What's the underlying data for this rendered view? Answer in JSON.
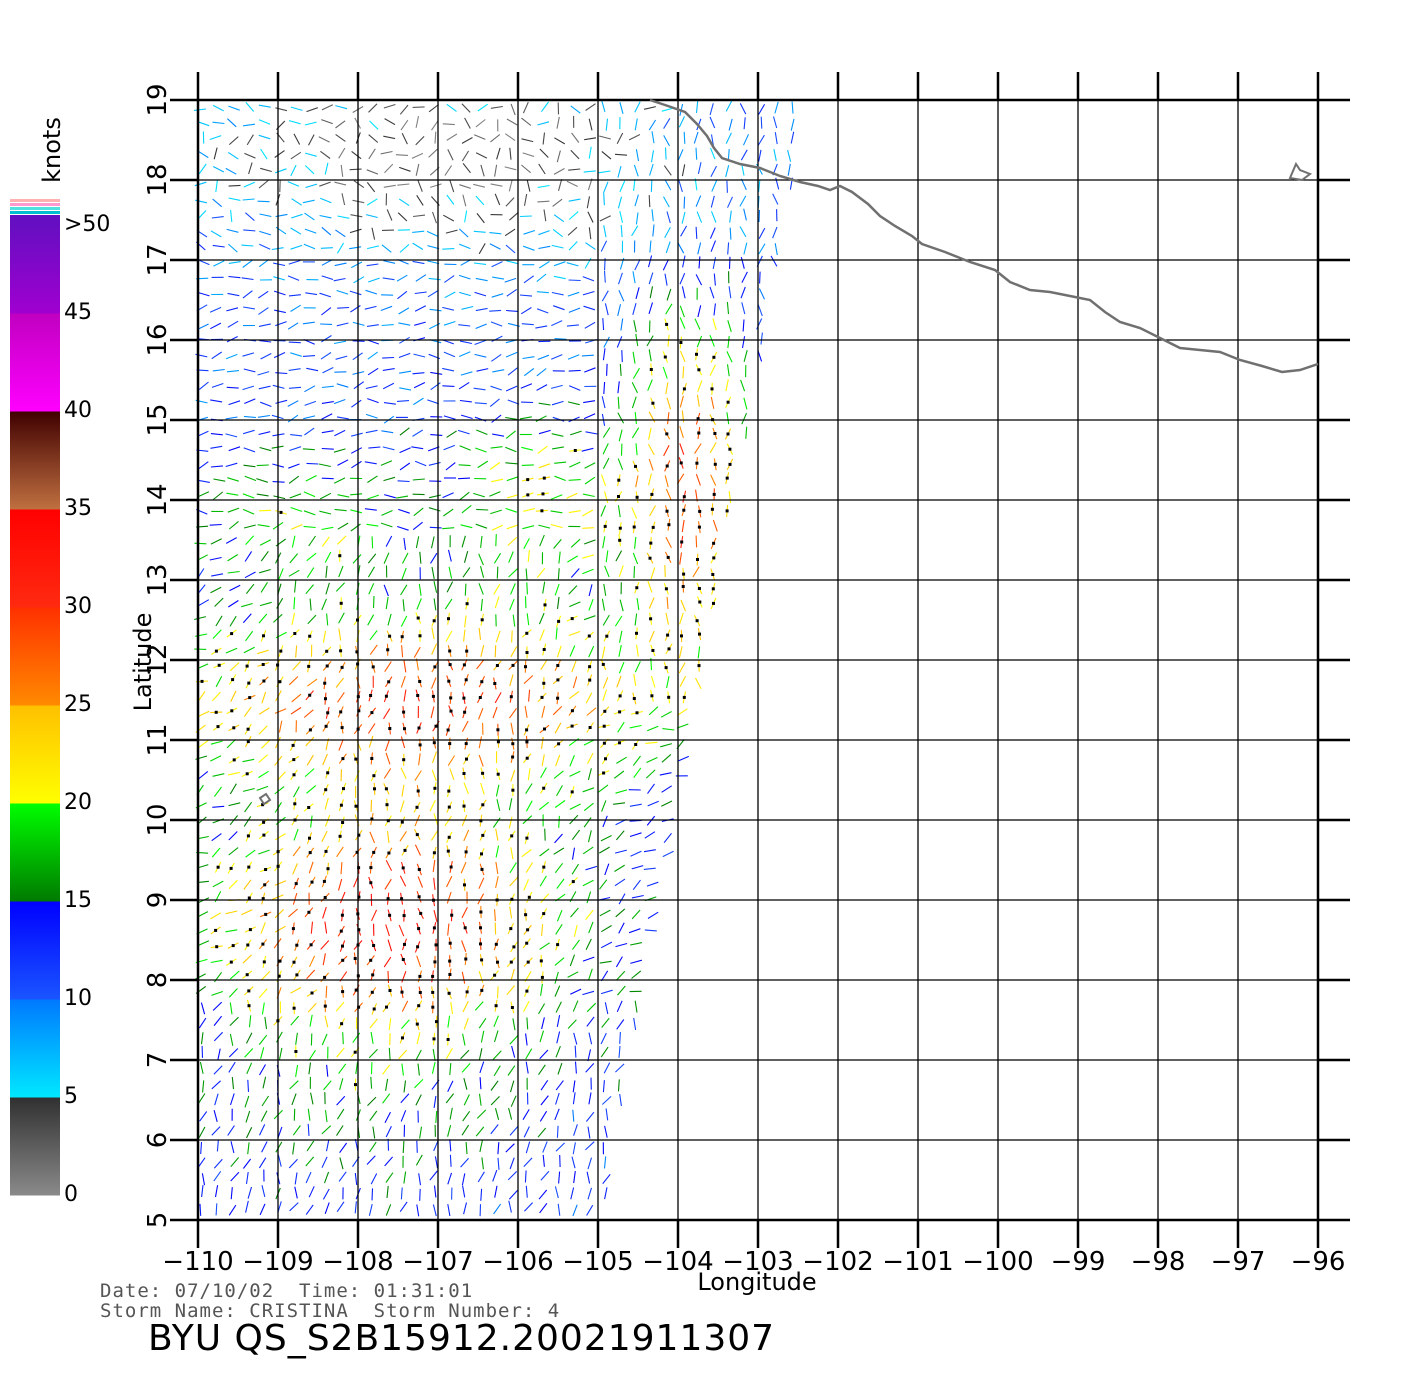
{
  "map": {
    "lon_range": [
      -110,
      -96
    ],
    "lat_range": [
      5,
      19
    ],
    "lon_ticks": [
      -110,
      -109,
      -108,
      -107,
      -106,
      -105,
      -104,
      -103,
      -102,
      -101,
      -100,
      -99,
      -98,
      -97,
      -96
    ],
    "lat_ticks": [
      5,
      6,
      7,
      8,
      9,
      10,
      11,
      12,
      13,
      14,
      15,
      16,
      17,
      18,
      19
    ],
    "xlabel": "Longitude",
    "ylabel": "Latitude",
    "grid": true,
    "colors": {
      "grid": "#000000",
      "coastline": "#707070",
      "background": "#ffffff"
    }
  },
  "colorbar": {
    "unit": "knots",
    "labels": [
      ">50",
      "45",
      "40",
      "35",
      "30",
      "25",
      "20",
      "15",
      "10",
      "5",
      "0"
    ],
    "segments": [
      {
        "range": "0-5",
        "from": "#8a8a8a",
        "to": "#303030"
      },
      {
        "range": "5-10",
        "from": "#00e8ff",
        "to": "#0078ff"
      },
      {
        "range": "10-15",
        "from": "#1a55ff",
        "to": "#0000ff"
      },
      {
        "range": "15-20",
        "from": "#007a00",
        "to": "#00ff00"
      },
      {
        "range": "20-25",
        "from": "#ffff00",
        "to": "#ffc000"
      },
      {
        "range": "25-30",
        "from": "#ff8a00",
        "to": "#ff3000"
      },
      {
        "range": "30-35",
        "from": "#ff2a10",
        "to": "#ff0000"
      },
      {
        "range": "35-40",
        "from": "#c07040",
        "to": "#400000"
      },
      {
        "range": "40-45",
        "from": "#ff00ff",
        "to": "#c000c0"
      },
      {
        "range": "45-50",
        "from": "#a000d0",
        "to": "#6010c0"
      }
    ]
  },
  "info": {
    "date_line": "Date: 07/10/02  Time: 01:31:01",
    "storm_line": "Storm Name: CRISTINA  Storm Number: 4",
    "product_title": "BYU QS_S2B15912.20021911307"
  }
}
